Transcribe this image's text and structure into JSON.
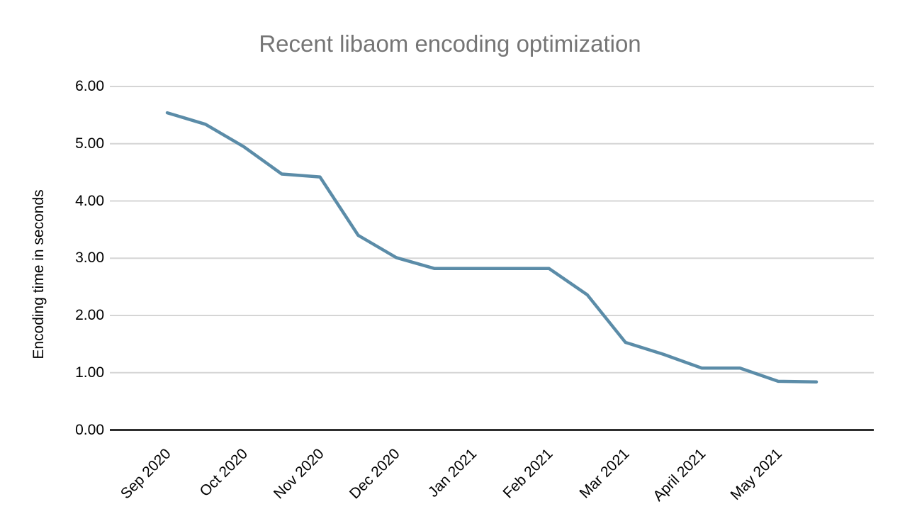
{
  "chart": {
    "background": "#ffffff"
  },
  "colors": {
    "title_text": "#757575",
    "tick_text": "#000000",
    "line": "#5b8ca8",
    "gridline": "#d5d5d5",
    "baseline": "#2e2e2e"
  },
  "chart_data": {
    "type": "line",
    "title": "Recent libaom encoding optimization",
    "xlabel": "",
    "ylabel": "Encoding time in seconds",
    "x_tick_labels": [
      "Sep 2020",
      "Oct 2020",
      "Nov 2020",
      "Dec 2020",
      "Jan 2021",
      "Feb 2021",
      "Mar 2021",
      "April 2021",
      "May 2021"
    ],
    "y_tick_labels": [
      "6.00",
      "5.00",
      "4.00",
      "3.00",
      "2.00",
      "1.00",
      "0.00"
    ],
    "ylim": [
      0,
      6
    ],
    "grid": true,
    "legend_position": "none",
    "points_per_x_tick": 2,
    "values": [
      5.54,
      5.34,
      4.95,
      4.47,
      4.42,
      3.4,
      3.01,
      2.82,
      2.82,
      2.82,
      2.82,
      2.36,
      1.53,
      1.32,
      1.08,
      1.08,
      0.85,
      0.84
    ]
  }
}
